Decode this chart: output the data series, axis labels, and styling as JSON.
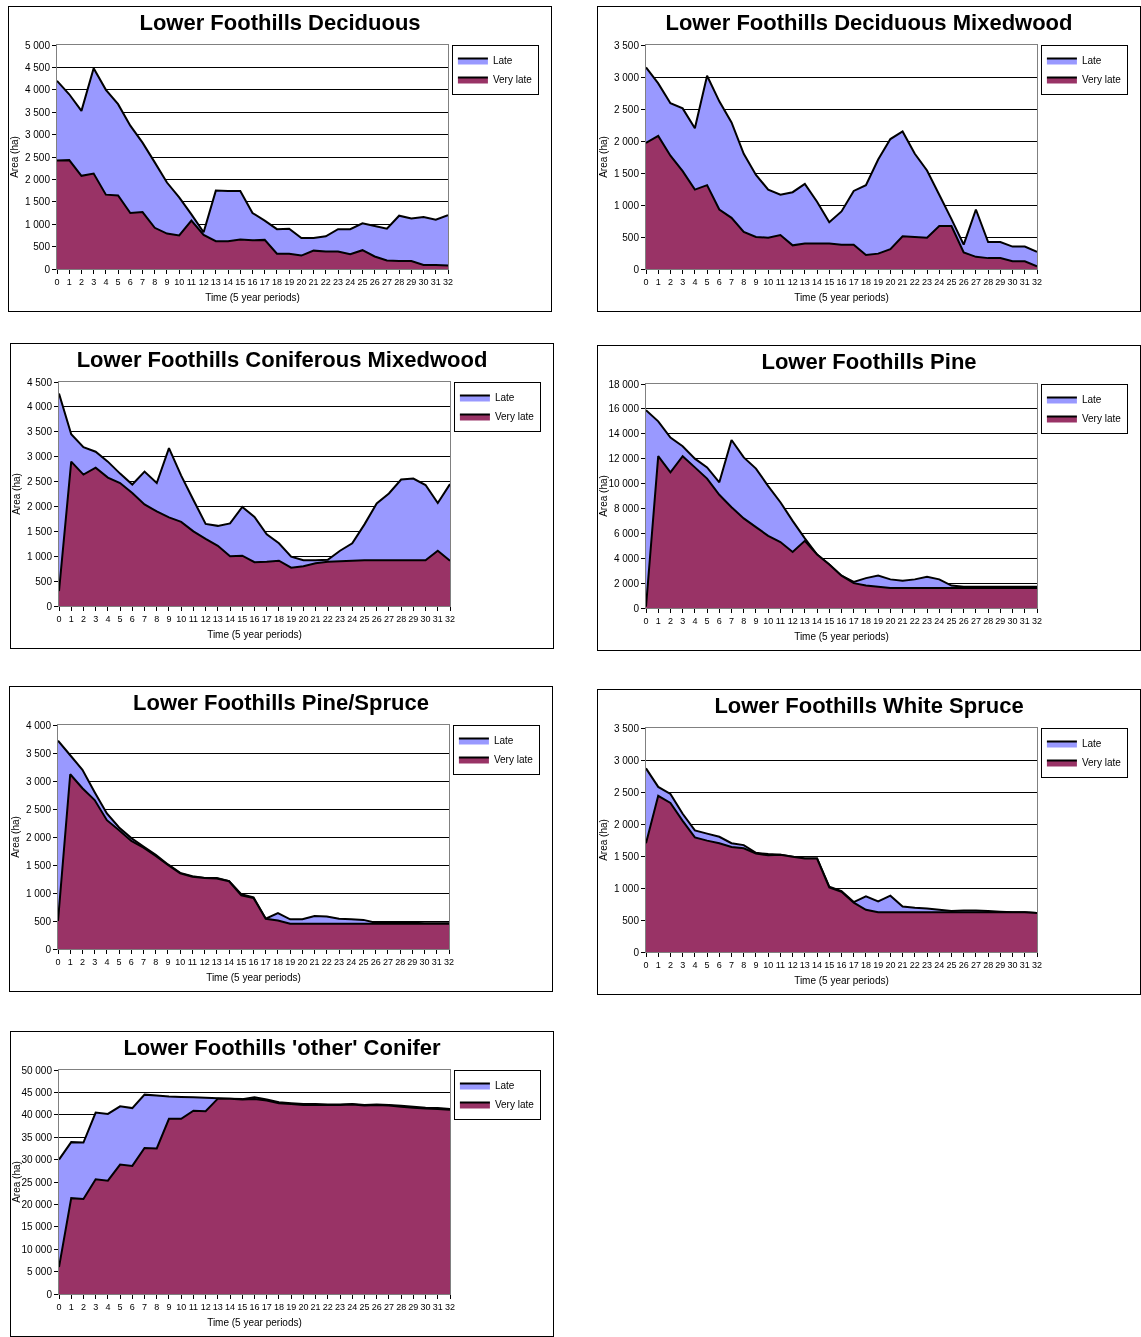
{
  "chart_data": [
    {
      "type": "area",
      "title": "Lower Foothills Deciduous",
      "xlabel": "Time (5 year periods)",
      "ylabel": "Area (ha)",
      "grid": "y",
      "legend": "top right",
      "x": [
        0,
        1,
        2,
        3,
        4,
        5,
        6,
        7,
        8,
        9,
        10,
        11,
        12,
        13,
        14,
        15,
        16,
        17,
        18,
        19,
        20,
        21,
        22,
        23,
        24,
        25,
        26,
        27,
        28,
        29,
        30,
        31,
        32
      ],
      "xlim": [
        0,
        32
      ],
      "xticks": [
        0,
        1,
        2,
        3,
        4,
        5,
        6,
        7,
        8,
        9,
        10,
        11,
        12,
        13,
        14,
        15,
        16,
        17,
        18,
        19,
        20,
        21,
        22,
        23,
        24,
        25,
        26,
        27,
        28,
        29,
        30,
        31,
        32
      ],
      "ylim": [
        0,
        5000
      ],
      "yticks": [
        {
          "value": 0,
          "label": "0"
        },
        {
          "value": 500,
          "label": "500"
        },
        {
          "value": 1000,
          "label": "1 000"
        },
        {
          "value": 1500,
          "label": "1 500"
        },
        {
          "value": 2000,
          "label": "2 000"
        },
        {
          "value": 2500,
          "label": "2 500"
        },
        {
          "value": 3000,
          "label": "3 000"
        },
        {
          "value": 3500,
          "label": "3 500"
        },
        {
          "value": 4000,
          "label": "4 000"
        },
        {
          "value": 4500,
          "label": "4 500"
        },
        {
          "value": 5000,
          "label": "5 000"
        }
      ],
      "series": [
        {
          "name": "Late",
          "color": "#9999ff",
          "values": [
            4200,
            3900,
            3530,
            4480,
            4000,
            3680,
            3200,
            2820,
            2380,
            1930,
            1600,
            1220,
            820,
            1750,
            1740,
            1740,
            1250,
            1080,
            890,
            900,
            690,
            690,
            730,
            890,
            890,
            1020,
            960,
            900,
            1190,
            1130,
            1160,
            1100,
            1200
          ]
        },
        {
          "name": "Very late",
          "color": "#993366",
          "values": [
            2420,
            2430,
            2080,
            2130,
            1660,
            1640,
            1250,
            1270,
            920,
            790,
            750,
            1080,
            760,
            620,
            620,
            660,
            640,
            650,
            340,
            340,
            300,
            410,
            390,
            390,
            330,
            420,
            280,
            190,
            180,
            180,
            90,
            90,
            80
          ]
        }
      ]
    },
    {
      "type": "area",
      "title": "Lower Foothills Deciduous Mixedwood",
      "xlabel": "Time (5 year periods)",
      "ylabel": "Area (ha)",
      "grid": "y",
      "legend": "top right",
      "x": [
        0,
        1,
        2,
        3,
        4,
        5,
        6,
        7,
        8,
        9,
        10,
        11,
        12,
        13,
        14,
        15,
        16,
        17,
        18,
        19,
        20,
        21,
        22,
        23,
        24,
        25,
        26,
        27,
        28,
        29,
        30,
        31,
        32
      ],
      "xlim": [
        0,
        32
      ],
      "xticks": [
        0,
        1,
        2,
        3,
        4,
        5,
        6,
        7,
        8,
        9,
        10,
        11,
        12,
        13,
        14,
        15,
        16,
        17,
        18,
        19,
        20,
        21,
        22,
        23,
        24,
        25,
        26,
        27,
        28,
        29,
        30,
        31,
        32
      ],
      "ylim": [
        0,
        3500
      ],
      "yticks": [
        {
          "value": 0,
          "label": "0"
        },
        {
          "value": 500,
          "label": "500"
        },
        {
          "value": 1000,
          "label": "1 000"
        },
        {
          "value": 1500,
          "label": "1 500"
        },
        {
          "value": 2000,
          "label": "2 000"
        },
        {
          "value": 2500,
          "label": "2 500"
        },
        {
          "value": 3000,
          "label": "3 000"
        },
        {
          "value": 3500,
          "label": "3 500"
        }
      ],
      "series": [
        {
          "name": "Late",
          "color": "#9999ff",
          "values": [
            3150,
            2900,
            2590,
            2510,
            2200,
            3020,
            2620,
            2290,
            1800,
            1470,
            1240,
            1160,
            1200,
            1330,
            1050,
            730,
            900,
            1220,
            1310,
            1710,
            2030,
            2150,
            1800,
            1540,
            1160,
            780,
            380,
            930,
            420,
            420,
            350,
            350,
            270
          ]
        },
        {
          "name": "Very late",
          "color": "#993366",
          "values": [
            1970,
            2080,
            1770,
            1530,
            1240,
            1310,
            930,
            800,
            580,
            500,
            490,
            530,
            370,
            400,
            400,
            400,
            380,
            380,
            220,
            240,
            310,
            510,
            500,
            490,
            670,
            670,
            260,
            190,
            170,
            170,
            120,
            120,
            40
          ]
        }
      ]
    },
    {
      "type": "area",
      "title": "Lower Foothills Coniferous Mixedwood",
      "xlabel": "Time (5 year periods)",
      "ylabel": "Area (ha)",
      "grid": "y",
      "legend": "top right",
      "x": [
        0,
        1,
        2,
        3,
        4,
        5,
        6,
        7,
        8,
        9,
        10,
        11,
        12,
        13,
        14,
        15,
        16,
        17,
        18,
        19,
        20,
        21,
        22,
        23,
        24,
        25,
        26,
        27,
        28,
        29,
        30,
        31,
        32
      ],
      "xlim": [
        0,
        32
      ],
      "xticks": [
        0,
        1,
        2,
        3,
        4,
        5,
        6,
        7,
        8,
        9,
        10,
        11,
        12,
        13,
        14,
        15,
        16,
        17,
        18,
        19,
        20,
        21,
        22,
        23,
        24,
        25,
        26,
        27,
        28,
        29,
        30,
        31,
        32
      ],
      "ylim": [
        0,
        4500
      ],
      "yticks": [
        {
          "value": 0,
          "label": "0"
        },
        {
          "value": 500,
          "label": "500"
        },
        {
          "value": 1000,
          "label": "1 000"
        },
        {
          "value": 1500,
          "label": "1 500"
        },
        {
          "value": 2000,
          "label": "2 000"
        },
        {
          "value": 2500,
          "label": "2 500"
        },
        {
          "value": 3000,
          "label": "3 000"
        },
        {
          "value": 3500,
          "label": "3 500"
        },
        {
          "value": 4000,
          "label": "4 000"
        },
        {
          "value": 4500,
          "label": "4 500"
        }
      ],
      "series": [
        {
          "name": "Late",
          "color": "#9999ff",
          "values": [
            4270,
            3450,
            3190,
            3100,
            2900,
            2660,
            2440,
            2700,
            2470,
            3170,
            2620,
            2130,
            1650,
            1610,
            1660,
            1990,
            1790,
            1440,
            1260,
            990,
            920,
            920,
            930,
            1110,
            1260,
            1640,
            2060,
            2260,
            2540,
            2560,
            2430,
            2070,
            2450
          ]
        },
        {
          "name": "Very late",
          "color": "#993366",
          "values": [
            300,
            2900,
            2640,
            2780,
            2580,
            2470,
            2270,
            2040,
            1900,
            1780,
            1690,
            1500,
            1350,
            1210,
            1000,
            1010,
            880,
            890,
            910,
            770,
            800,
            860,
            890,
            900,
            910,
            920,
            920,
            920,
            920,
            920,
            920,
            1110,
            910
          ]
        }
      ]
    },
    {
      "type": "area",
      "title": "Lower Foothills Pine",
      "xlabel": "Time (5 year periods)",
      "ylabel": "Area (ha)",
      "grid": "y",
      "legend": "top right",
      "x": [
        0,
        1,
        2,
        3,
        4,
        5,
        6,
        7,
        8,
        9,
        10,
        11,
        12,
        13,
        14,
        15,
        16,
        17,
        18,
        19,
        20,
        21,
        22,
        23,
        24,
        25,
        26,
        27,
        28,
        29,
        30,
        31,
        32
      ],
      "xlim": [
        0,
        32
      ],
      "xticks": [
        0,
        1,
        2,
        3,
        4,
        5,
        6,
        7,
        8,
        9,
        10,
        11,
        12,
        13,
        14,
        15,
        16,
        17,
        18,
        19,
        20,
        21,
        22,
        23,
        24,
        25,
        26,
        27,
        28,
        29,
        30,
        31,
        32
      ],
      "ylim": [
        0,
        18000
      ],
      "yticks": [
        {
          "value": 0,
          "label": "0"
        },
        {
          "value": 2000,
          "label": "2 000"
        },
        {
          "value": 4000,
          "label": "4 000"
        },
        {
          "value": 6000,
          "label": "6 000"
        },
        {
          "value": 8000,
          "label": "8 000"
        },
        {
          "value": 10000,
          "label": "10 000"
        },
        {
          "value": 12000,
          "label": "12 000"
        },
        {
          "value": 14000,
          "label": "14 000"
        },
        {
          "value": 16000,
          "label": "16 000"
        },
        {
          "value": 18000,
          "label": "18 000"
        }
      ],
      "series": [
        {
          "name": "Late",
          "color": "#9999ff",
          "values": [
            15900,
            15000,
            13700,
            13000,
            12000,
            11300,
            10100,
            13500,
            12100,
            11200,
            9800,
            8500,
            7000,
            5600,
            4300,
            3500,
            2600,
            2100,
            2400,
            2600,
            2300,
            2200,
            2300,
            2500,
            2300,
            1800,
            1700,
            1700,
            1700,
            1700,
            1700,
            1700,
            1700
          ]
        },
        {
          "name": "Very late",
          "color": "#993366",
          "values": [
            100,
            12200,
            10900,
            12200,
            11300,
            10400,
            9100,
            8100,
            7200,
            6500,
            5800,
            5300,
            4500,
            5400,
            4300,
            3500,
            2600,
            2000,
            1800,
            1700,
            1600,
            1600,
            1600,
            1600,
            1600,
            1600,
            1600,
            1600,
            1600,
            1600,
            1600,
            1600,
            1600
          ]
        }
      ]
    },
    {
      "type": "area",
      "title": "Lower Foothills Pine/Spruce",
      "xlabel": "Time (5 year periods)",
      "ylabel": "Area (ha)",
      "grid": "y",
      "legend": "top right",
      "x": [
        0,
        1,
        2,
        3,
        4,
        5,
        6,
        7,
        8,
        9,
        10,
        11,
        12,
        13,
        14,
        15,
        16,
        17,
        18,
        19,
        20,
        21,
        22,
        23,
        24,
        25,
        26,
        27,
        28,
        29,
        30,
        31,
        32
      ],
      "xlim": [
        0,
        32
      ],
      "xticks": [
        0,
        1,
        2,
        3,
        4,
        5,
        6,
        7,
        8,
        9,
        10,
        11,
        12,
        13,
        14,
        15,
        16,
        17,
        18,
        19,
        20,
        21,
        22,
        23,
        24,
        25,
        26,
        27,
        28,
        29,
        30,
        31,
        32
      ],
      "ylim": [
        0,
        4000
      ],
      "yticks": [
        {
          "value": 0,
          "label": "0"
        },
        {
          "value": 500,
          "label": "500"
        },
        {
          "value": 1000,
          "label": "1 000"
        },
        {
          "value": 1500,
          "label": "1 500"
        },
        {
          "value": 2000,
          "label": "2 000"
        },
        {
          "value": 2500,
          "label": "2 500"
        },
        {
          "value": 3000,
          "label": "3 000"
        },
        {
          "value": 3500,
          "label": "3 500"
        },
        {
          "value": 4000,
          "label": "4 000"
        }
      ],
      "series": [
        {
          "name": "Late",
          "color": "#9999ff",
          "values": [
            3720,
            3460,
            3200,
            2800,
            2420,
            2170,
            1980,
            1830,
            1680,
            1510,
            1360,
            1300,
            1270,
            1270,
            1210,
            980,
            920,
            540,
            640,
            530,
            530,
            590,
            580,
            540,
            530,
            520,
            470,
            470,
            470,
            470,
            460,
            460,
            460
          ]
        },
        {
          "name": "Very late",
          "color": "#993366",
          "values": [
            500,
            3120,
            2870,
            2660,
            2300,
            2120,
            1930,
            1810,
            1660,
            1500,
            1350,
            1290,
            1270,
            1260,
            1210,
            960,
            910,
            540,
            510,
            450,
            450,
            450,
            450,
            450,
            450,
            450,
            450,
            450,
            450,
            450,
            450,
            450,
            450
          ]
        }
      ]
    },
    {
      "type": "area",
      "title": "Lower Foothills White Spruce",
      "xlabel": "Time (5 year periods)",
      "ylabel": "Area (ha)",
      "grid": "y",
      "legend": "top right",
      "x": [
        0,
        1,
        2,
        3,
        4,
        5,
        6,
        7,
        8,
        9,
        10,
        11,
        12,
        13,
        14,
        15,
        16,
        17,
        18,
        19,
        20,
        21,
        22,
        23,
        24,
        25,
        26,
        27,
        28,
        29,
        30,
        31,
        32
      ],
      "xlim": [
        0,
        32
      ],
      "xticks": [
        0,
        1,
        2,
        3,
        4,
        5,
        6,
        7,
        8,
        9,
        10,
        11,
        12,
        13,
        14,
        15,
        16,
        17,
        18,
        19,
        20,
        21,
        22,
        23,
        24,
        25,
        26,
        27,
        28,
        29,
        30,
        31,
        32
      ],
      "ylim": [
        0,
        3500
      ],
      "yticks": [
        {
          "value": 0,
          "label": "0"
        },
        {
          "value": 500,
          "label": "500"
        },
        {
          "value": 1000,
          "label": "1 000"
        },
        {
          "value": 1500,
          "label": "1 500"
        },
        {
          "value": 2000,
          "label": "2 000"
        },
        {
          "value": 2500,
          "label": "2 500"
        },
        {
          "value": 3000,
          "label": "3 000"
        },
        {
          "value": 3500,
          "label": "3 500"
        }
      ],
      "series": [
        {
          "name": "Late",
          "color": "#9999ff",
          "values": [
            2870,
            2580,
            2470,
            2160,
            1900,
            1850,
            1800,
            1700,
            1670,
            1550,
            1530,
            1520,
            1490,
            1460,
            1460,
            1020,
            950,
            780,
            870,
            790,
            880,
            710,
            690,
            680,
            660,
            640,
            650,
            650,
            640,
            630,
            620,
            620,
            610
          ]
        },
        {
          "name": "Very late",
          "color": "#993366",
          "values": [
            1700,
            2440,
            2330,
            2050,
            1790,
            1740,
            1700,
            1640,
            1620,
            1540,
            1510,
            1520,
            1490,
            1460,
            1460,
            1010,
            940,
            770,
            660,
            620,
            620,
            620,
            620,
            620,
            620,
            620,
            620,
            620,
            620,
            620,
            620,
            620,
            610
          ]
        }
      ]
    },
    {
      "type": "area",
      "title": "Lower Foothills 'other' Conifer",
      "xlabel": "Time (5 year periods)",
      "ylabel": "Area (ha)",
      "grid": "y",
      "legend": "top right",
      "x": [
        0,
        1,
        2,
        3,
        4,
        5,
        6,
        7,
        8,
        9,
        10,
        11,
        12,
        13,
        14,
        15,
        16,
        17,
        18,
        19,
        20,
        21,
        22,
        23,
        24,
        25,
        26,
        27,
        28,
        29,
        30,
        31,
        32
      ],
      "xlim": [
        0,
        32
      ],
      "xticks": [
        0,
        1,
        2,
        3,
        4,
        5,
        6,
        7,
        8,
        9,
        10,
        11,
        12,
        13,
        14,
        15,
        16,
        17,
        18,
        19,
        20,
        21,
        22,
        23,
        24,
        25,
        26,
        27,
        28,
        29,
        30,
        31,
        32
      ],
      "ylim": [
        0,
        50000
      ],
      "yticks": [
        {
          "value": 0,
          "label": "0"
        },
        {
          "value": 5000,
          "label": "5 000"
        },
        {
          "value": 10000,
          "label": "10 000"
        },
        {
          "value": 15000,
          "label": "15 000"
        },
        {
          "value": 20000,
          "label": "20 000"
        },
        {
          "value": 25000,
          "label": "25 000"
        },
        {
          "value": 30000,
          "label": "30 000"
        },
        {
          "value": 35000,
          "label": "35 000"
        },
        {
          "value": 40000,
          "label": "40 000"
        },
        {
          "value": 45000,
          "label": "45 000"
        },
        {
          "value": 50000,
          "label": "50 000"
        }
      ],
      "series": [
        {
          "name": "Late",
          "color": "#9999ff",
          "values": [
            30000,
            33900,
            33800,
            40500,
            40200,
            41900,
            41500,
            44500,
            44300,
            44100,
            44000,
            43900,
            43800,
            43700,
            43600,
            43500,
            43900,
            43400,
            42800,
            42600,
            42400,
            42400,
            42300,
            42300,
            42400,
            42200,
            42300,
            42200,
            42000,
            41800,
            41600,
            41500,
            41300
          ]
        },
        {
          "name": "Very late",
          "color": "#993366",
          "values": [
            6000,
            21400,
            21200,
            25600,
            25300,
            28900,
            28600,
            32600,
            32500,
            39100,
            39100,
            40900,
            40800,
            43600,
            43600,
            43400,
            43500,
            43200,
            42600,
            42400,
            42200,
            42200,
            42200,
            42200,
            42300,
            42100,
            42200,
            42100,
            41800,
            41600,
            41400,
            41300,
            41100
          ]
        }
      ]
    }
  ]
}
